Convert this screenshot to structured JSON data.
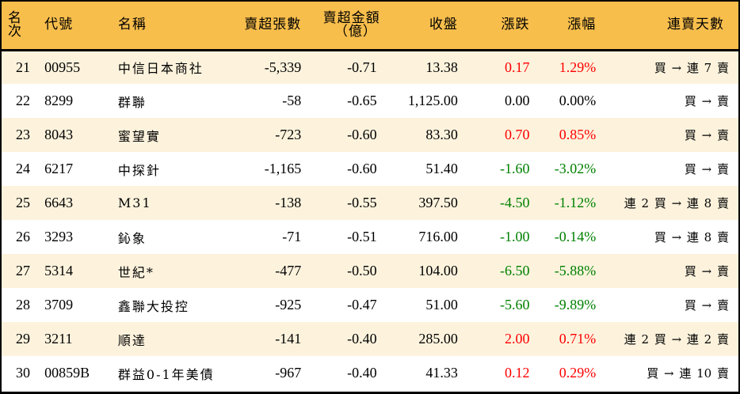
{
  "table": {
    "headers": {
      "rank": "名次",
      "code": "代號",
      "name": "名稱",
      "net_sell_volume": "賣超張數",
      "net_sell_amount_line1": "賣超金額",
      "net_sell_amount_line2": "（億）",
      "close": "收盤",
      "change": "漲跌",
      "change_pct": "漲幅",
      "sell_streak": "連賣天數"
    },
    "colors": {
      "header_bg": "#f8be4c",
      "row_alt_bg": "#fdf3dd",
      "up": "#ff0000",
      "down": "#008000"
    },
    "rows": [
      {
        "rank": "21",
        "code": "00955",
        "name": "中信日本商社",
        "volume": "-5,339",
        "amount": "-0.71",
        "close": "13.38",
        "change": "0.17",
        "change_pct": "1.29%",
        "direction": "up",
        "streak": "買 → 連 7 賣"
      },
      {
        "rank": "22",
        "code": "8299",
        "name": "群聯",
        "volume": "-58",
        "amount": "-0.65",
        "close": "1,125.00",
        "change": "0.00",
        "change_pct": "0.00%",
        "direction": "flat",
        "streak": "買 → 賣"
      },
      {
        "rank": "23",
        "code": "8043",
        "name": "蜜望實",
        "volume": "-723",
        "amount": "-0.60",
        "close": "83.30",
        "change": "0.70",
        "change_pct": "0.85%",
        "direction": "up",
        "streak": "買 → 賣"
      },
      {
        "rank": "24",
        "code": "6217",
        "name": "中探針",
        "volume": "-1,165",
        "amount": "-0.60",
        "close": "51.40",
        "change": "-1.60",
        "change_pct": "-3.02%",
        "direction": "down",
        "streak": "買 → 賣"
      },
      {
        "rank": "25",
        "code": "6643",
        "name": "M31",
        "volume": "-138",
        "amount": "-0.55",
        "close": "397.50",
        "change": "-4.50",
        "change_pct": "-1.12%",
        "direction": "down",
        "streak": "連 2 買 → 連 8 賣"
      },
      {
        "rank": "26",
        "code": "3293",
        "name": "鈊象",
        "volume": "-71",
        "amount": "-0.51",
        "close": "716.00",
        "change": "-1.00",
        "change_pct": "-0.14%",
        "direction": "down",
        "streak": "買 → 連 8 賣"
      },
      {
        "rank": "27",
        "code": "5314",
        "name": "世紀*",
        "volume": "-477",
        "amount": "-0.50",
        "close": "104.00",
        "change": "-6.50",
        "change_pct": "-5.88%",
        "direction": "down",
        "streak": "買 → 賣"
      },
      {
        "rank": "28",
        "code": "3709",
        "name": "鑫聯大投控",
        "volume": "-925",
        "amount": "-0.47",
        "close": "51.00",
        "change": "-5.60",
        "change_pct": "-9.89%",
        "direction": "down",
        "streak": "買 → 賣"
      },
      {
        "rank": "29",
        "code": "3211",
        "name": "順達",
        "volume": "-141",
        "amount": "-0.40",
        "close": "285.00",
        "change": "2.00",
        "change_pct": "0.71%",
        "direction": "up",
        "streak": "連 2 買 → 連 2 賣"
      },
      {
        "rank": "30",
        "code": "00859B",
        "name": "群益0-1年美債",
        "volume": "-967",
        "amount": "-0.40",
        "close": "41.33",
        "change": "0.12",
        "change_pct": "0.29%",
        "direction": "up",
        "streak": "買 → 連 10 賣"
      }
    ]
  }
}
